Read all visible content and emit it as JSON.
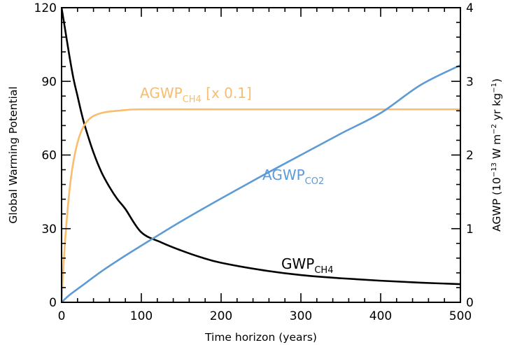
{
  "chart_data": {
    "type": "line",
    "xlabel": "Time horizon (years)",
    "ylabel_left": "Global Warming Potential",
    "ylabel_right": {
      "base": "AGWP (10",
      "exp1": "−13",
      "mid": " W m",
      "exp2": "−2",
      "mid2": " yr kg",
      "exp3": "−1",
      "end": ")"
    },
    "xlim": [
      0,
      500
    ],
    "ylim_left": [
      0,
      120
    ],
    "ylim_right": [
      0,
      4
    ],
    "x_ticks": [
      0,
      100,
      200,
      300,
      400,
      500
    ],
    "y_left_ticks": [
      0,
      30,
      60,
      90,
      120
    ],
    "y_right_ticks": [
      0,
      1,
      2,
      3,
      4
    ],
    "grid": false,
    "series": [
      {
        "key": "gwp_ch4",
        "axis": "left",
        "color": "#000000",
        "label_main": "GWP",
        "label_sub": "CH4",
        "x": [
          0,
          5,
          10,
          15,
          20,
          25,
          30,
          40,
          50,
          60,
          70,
          80,
          100,
          125,
          150,
          175,
          200,
          250,
          300,
          350,
          400,
          450,
          500
        ],
        "y": [
          120,
          110,
          100,
          91,
          84,
          77,
          71,
          61,
          53,
          47,
          42,
          38,
          28.5,
          24.4,
          21.1,
          18.3,
          16.1,
          13.2,
          11.1,
          9.8,
          8.8,
          8.0,
          7.4
        ]
      },
      {
        "key": "agwp_ch4",
        "axis": "right",
        "color": "#f8bd6d",
        "label_main": "AGWP",
        "label_sub": "CH4",
        "label_suffix": " [x 0.1]",
        "x": [
          0,
          2,
          5,
          10,
          15,
          20,
          25,
          30,
          35,
          40,
          50,
          60,
          70,
          80,
          100,
          200,
          300,
          400,
          500
        ],
        "y": [
          0,
          0.42,
          0.92,
          1.53,
          1.92,
          2.17,
          2.33,
          2.43,
          2.49,
          2.53,
          2.57,
          2.59,
          2.6,
          2.61,
          2.62,
          2.62,
          2.62,
          2.62,
          2.62
        ]
      },
      {
        "key": "agwp_co2",
        "axis": "right",
        "color": "#5e9ad3",
        "label_main": "AGWP",
        "label_sub": "CO2",
        "x": [
          0,
          10,
          25,
          50,
          75,
          100,
          150,
          200,
          250,
          300,
          350,
          400,
          450,
          500
        ],
        "y": [
          0,
          0.1,
          0.22,
          0.42,
          0.6,
          0.77,
          1.1,
          1.41,
          1.71,
          2.0,
          2.29,
          2.57,
          2.95,
          3.22
        ]
      }
    ]
  }
}
